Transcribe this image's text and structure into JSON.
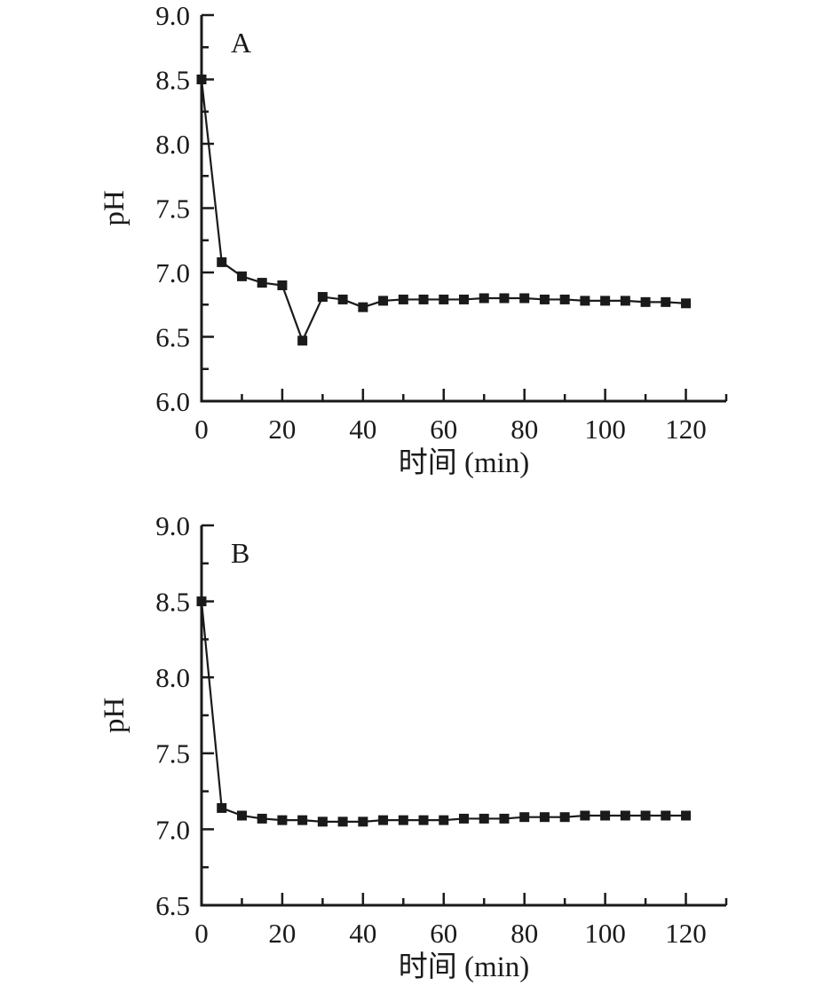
{
  "figure": {
    "background": "#ffffff",
    "text_color": "#1a1a1a"
  },
  "chart_data": [
    {
      "type": "line",
      "panel_label": "A",
      "xlabel": "时间 (min)",
      "ylabel": "pH",
      "xlim": [
        0,
        130
      ],
      "ylim": [
        6.0,
        9.0
      ],
      "x_major_ticks": [
        0,
        20,
        40,
        60,
        80,
        100,
        120
      ],
      "x_minor_step": 10,
      "y_major_step": 0.5,
      "y_minor_step": 0.25,
      "grid": false,
      "legend_position": "none",
      "marker": "square",
      "line_color": "#1a1a1a",
      "x": [
        0,
        5,
        10,
        15,
        20,
        25,
        30,
        35,
        40,
        45,
        50,
        55,
        60,
        65,
        70,
        75,
        80,
        85,
        90,
        95,
        100,
        105,
        110,
        115,
        120
      ],
      "values": [
        8.5,
        7.08,
        6.97,
        6.92,
        6.9,
        6.47,
        6.81,
        6.79,
        6.73,
        6.78,
        6.79,
        6.79,
        6.79,
        6.79,
        6.8,
        6.8,
        6.8,
        6.79,
        6.79,
        6.78,
        6.78,
        6.78,
        6.77,
        6.77,
        6.76
      ]
    },
    {
      "type": "line",
      "panel_label": "B",
      "xlabel": "时间 (min)",
      "ylabel": "pH",
      "xlim": [
        0,
        130
      ],
      "ylim": [
        6.5,
        9.0
      ],
      "x_major_ticks": [
        0,
        20,
        40,
        60,
        80,
        100,
        120
      ],
      "x_minor_step": 10,
      "y_major_step": 0.5,
      "y_minor_step": 0.25,
      "grid": false,
      "legend_position": "none",
      "marker": "square",
      "line_color": "#1a1a1a",
      "x": [
        0,
        5,
        10,
        15,
        20,
        25,
        30,
        35,
        40,
        45,
        50,
        55,
        60,
        65,
        70,
        75,
        80,
        85,
        90,
        95,
        100,
        105,
        110,
        115,
        120
      ],
      "values": [
        8.5,
        7.14,
        7.09,
        7.07,
        7.06,
        7.06,
        7.05,
        7.05,
        7.05,
        7.06,
        7.06,
        7.06,
        7.06,
        7.07,
        7.07,
        7.07,
        7.08,
        7.08,
        7.08,
        7.09,
        7.09,
        7.09,
        7.09,
        7.09,
        7.09
      ]
    }
  ]
}
